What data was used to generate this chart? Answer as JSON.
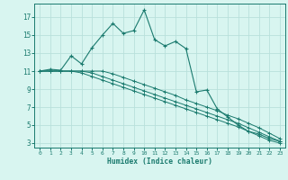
{
  "xlabel": "Humidex (Indice chaleur)",
  "x": [
    0,
    1,
    2,
    3,
    4,
    5,
    6,
    7,
    8,
    9,
    10,
    11,
    12,
    13,
    14,
    15,
    16,
    17,
    18,
    19,
    20,
    21,
    22,
    23
  ],
  "line1": [
    11.0,
    11.2,
    11.1,
    12.7,
    11.8,
    13.6,
    15.0,
    16.3,
    15.2,
    15.5,
    17.8,
    14.5,
    13.8,
    14.3,
    13.5,
    8.7,
    8.9,
    6.8,
    5.9,
    5.0,
    4.3,
    4.0,
    3.5,
    3.2
  ],
  "line2": [
    11.0,
    11.0,
    11.0,
    11.0,
    11.0,
    11.0,
    11.0,
    10.7,
    10.3,
    9.9,
    9.5,
    9.1,
    8.7,
    8.3,
    7.8,
    7.4,
    7.0,
    6.6,
    6.1,
    5.7,
    5.2,
    4.7,
    4.1,
    3.5
  ],
  "line3": [
    11.0,
    11.0,
    11.0,
    11.0,
    11.0,
    10.8,
    10.4,
    10.0,
    9.6,
    9.2,
    8.8,
    8.4,
    8.0,
    7.6,
    7.2,
    6.8,
    6.4,
    6.0,
    5.6,
    5.2,
    4.7,
    4.2,
    3.7,
    3.2
  ],
  "line4": [
    11.0,
    11.0,
    11.0,
    11.0,
    10.8,
    10.4,
    10.0,
    9.6,
    9.2,
    8.8,
    8.4,
    8.0,
    7.6,
    7.2,
    6.8,
    6.4,
    6.0,
    5.6,
    5.2,
    4.8,
    4.3,
    3.8,
    3.3,
    3.0
  ],
  "color": "#1a7a6e",
  "background": "#d8f5f0",
  "grid_color": "#b8e0db",
  "ylim_min": 2.5,
  "ylim_max": 18.5,
  "xlim_min": -0.5,
  "xlim_max": 23.5,
  "yticks": [
    3,
    5,
    7,
    9,
    11,
    13,
    15,
    17
  ],
  "xticks": [
    0,
    1,
    2,
    3,
    4,
    5,
    6,
    7,
    8,
    9,
    10,
    11,
    12,
    13,
    14,
    15,
    16,
    17,
    18,
    19,
    20,
    21,
    22,
    23
  ]
}
